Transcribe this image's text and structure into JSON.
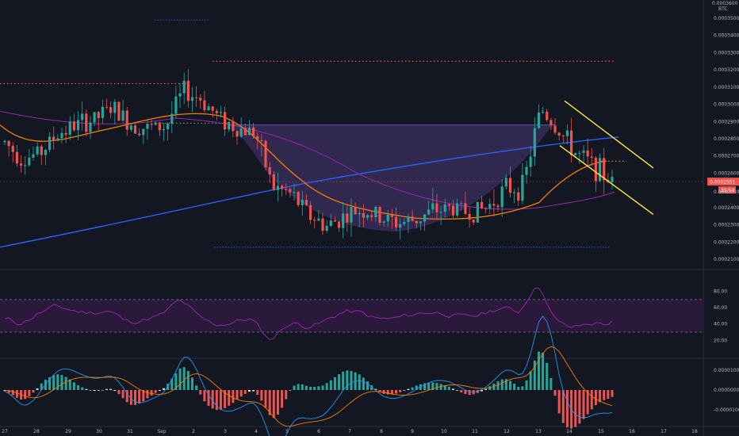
{
  "chart_data": {
    "type": "candlestick",
    "header": {
      "unit_top": "0.0003600",
      "quote": "BTC"
    },
    "price_axis": {
      "ylim": [
        0.000205,
        0.00036
      ],
      "ticks": [
        "0.0003500",
        "0.0003400",
        "0.0003300",
        "0.0003200",
        "0.0003100",
        "0.0003000",
        "0.0002900",
        "0.0002800",
        "0.0002700",
        "0.0002600",
        "0.0002400",
        "0.0002300",
        "0.0002200",
        "0.0002100"
      ],
      "current_price_label": "0.0002551",
      "countdown_label": "35:54",
      "secondary_label": "0.0002500"
    },
    "x_axis": {
      "ticks": [
        "27",
        "28",
        "29",
        "30",
        "31",
        "Sep",
        "2",
        "3",
        "4",
        "5",
        "6",
        "7",
        "8",
        "9",
        "10",
        "11",
        "12",
        "13",
        "14",
        "15",
        "16",
        "17",
        "18"
      ]
    },
    "candles_low_res": {
      "note_values": "approx close prices per session",
      "closes": [
        0.000278,
        0.000268,
        0.000272,
        0.000283,
        0.000288,
        0.000291,
        0.000298,
        0.000289,
        0.000286,
        0.000287,
        0.000308,
        0.000303,
        0.000292,
        0.000286,
        0.000284,
        0.000252,
        0.000248,
        0.000236,
        0.000229,
        0.000235,
        0.000239,
        0.000234,
        0.000231,
        0.000233,
        0.000238,
        0.00024,
        0.000237,
        0.00024,
        0.000251,
        0.000252,
        0.000298,
        0.000285,
        0.000271,
        0.000264,
        0.000255
      ]
    },
    "rsi": {
      "ticks": [
        "80.00",
        "60.00",
        "40.00",
        "20.00"
      ],
      "upper_band": 70,
      "lower_band": 30
    },
    "macd": {
      "ticks": [
        "0.0000100",
        "0.0000000",
        "-0.0000100"
      ]
    },
    "colors": {
      "up": "#26a69a",
      "down": "#ef5350",
      "ema_orange": "#f57c00",
      "sma_blue": "#2962ff",
      "ma_purple": "#9c27b0",
      "channel": "#ffeb3b",
      "cup_fill": "#7e57c2",
      "resistance_red": "#ef5350",
      "rsi_line": "#9c27b0"
    }
  }
}
